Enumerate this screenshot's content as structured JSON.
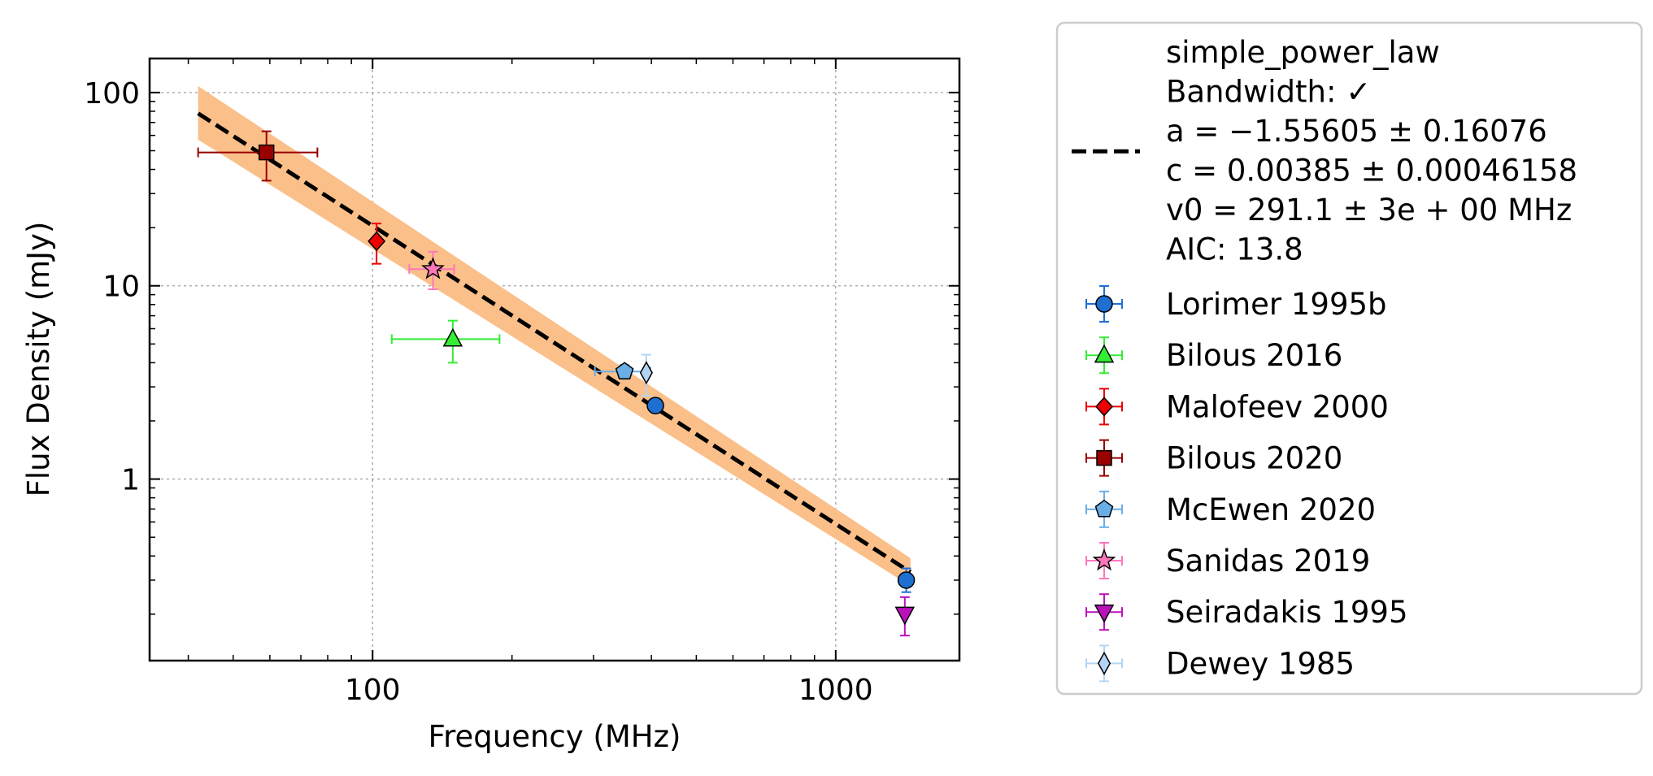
{
  "chart_data": {
    "type": "scatter",
    "xscale": "log",
    "yscale": "log",
    "xlabel": "Frequency (MHz)",
    "ylabel": "Flux Density (mJy)",
    "xlim": [
      33,
      1850
    ],
    "ylim": [
      0.115,
      150
    ],
    "grid": true,
    "legend_position": "outside-right",
    "x_ticks": [
      {
        "value": 100,
        "label": "100"
      },
      {
        "value": 1000,
        "label": "1000"
      }
    ],
    "y_ticks": [
      {
        "value": 1,
        "label": "1"
      },
      {
        "value": 10,
        "label": "10"
      },
      {
        "value": 100,
        "label": "100"
      }
    ],
    "fit": {
      "name": "simple_power_law",
      "info": [
        "simple_power_law",
        "Bandwidth: ✓",
        "a = −1.55605 ± 0.16076",
        "c = 0.00385 ± 0.00046158",
        "v0 = 291.1 ± 3e + 00 MHz",
        "AIC: 13.8"
      ],
      "color": "#000000",
      "band_color": "#fbbf8a",
      "line": [
        {
          "x": 42,
          "y": 78
        },
        {
          "x": 1450,
          "y": 0.33
        }
      ],
      "band": [
        {
          "x": 42,
          "lo": 57,
          "hi": 108
        },
        {
          "x": 1450,
          "lo": 0.28,
          "hi": 0.39
        }
      ]
    },
    "series": [
      {
        "name": "Lorimer 1995b",
        "marker": "circle",
        "color": "#1f6fd1",
        "points": [
          {
            "x": 408,
            "y": 2.4
          },
          {
            "x": 1420,
            "y": 0.3,
            "ylo": 0.26,
            "yhi": 0.345
          }
        ]
      },
      {
        "name": "Bilous 2016",
        "marker": "triangle-up",
        "color": "#33ee33",
        "points": [
          {
            "x": 149,
            "y": 5.3,
            "xlo": 110,
            "xhi": 188,
            "ylo": 4.0,
            "yhi": 6.6
          }
        ]
      },
      {
        "name": "Malofeev 2000",
        "marker": "diamond",
        "color": "#ee0000",
        "points": [
          {
            "x": 102,
            "y": 17,
            "ylo": 13,
            "yhi": 21
          }
        ]
      },
      {
        "name": "Bilous 2020",
        "marker": "square",
        "color": "#990000",
        "points": [
          {
            "x": 59,
            "y": 49,
            "xlo": 42,
            "xhi": 76,
            "ylo": 35,
            "yhi": 63
          }
        ]
      },
      {
        "name": "McEwen 2020",
        "marker": "pentagon",
        "color": "#6aaee6",
        "points": [
          {
            "x": 350,
            "y": 3.6,
            "xlo": 302,
            "xhi": 398,
            "ylo": 3.3,
            "yhi": 3.9
          }
        ]
      },
      {
        "name": "Sanidas 2019",
        "marker": "star",
        "color": "#ff77bb",
        "points": [
          {
            "x": 135,
            "y": 12.2,
            "xlo": 120,
            "xhi": 150,
            "ylo": 9.6,
            "yhi": 15
          }
        ]
      },
      {
        "name": "Seiradakis 1995",
        "marker": "triangle-down",
        "color": "#bb11bb",
        "points": [
          {
            "x": 1410,
            "y": 0.2,
            "ylo": 0.155,
            "yhi": 0.245
          }
        ]
      },
      {
        "name": "Dewey 1985",
        "marker": "thin-diamond",
        "color": "#b3d5f3",
        "points": [
          {
            "x": 390,
            "y": 3.55,
            "ylo": 2.7,
            "yhi": 4.4
          }
        ]
      }
    ]
  }
}
